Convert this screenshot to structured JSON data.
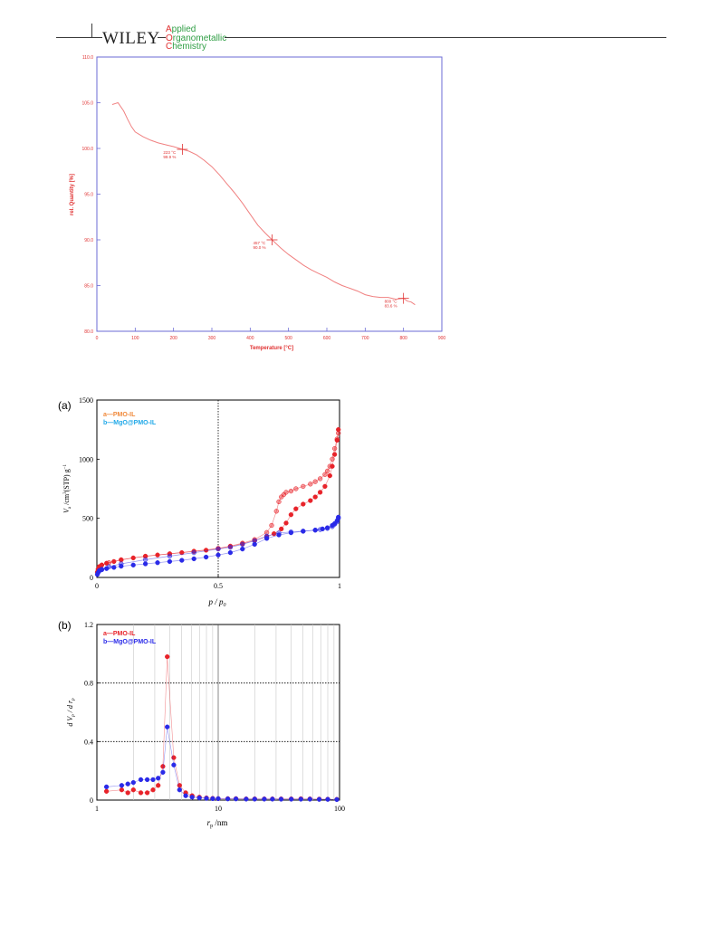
{
  "header": {
    "publisher": "WILEY",
    "journal_lines": [
      {
        "cap": "A",
        "rest": "pplied"
      },
      {
        "cap": "O",
        "rest": "rganometallic"
      },
      {
        "cap": "C",
        "rest": "hemistry"
      }
    ]
  },
  "colors": {
    "tga_axis": "#e03131",
    "tga_curve": "#f08080",
    "tga_frame": "#6b6bd6",
    "series_a": "#e8232a",
    "series_b": "#2a2ae8",
    "legend_a_fig_a": "#f08a3c",
    "legend_b_fig_a": "#1fa8e8"
  },
  "chart_data": [
    {
      "type": "line",
      "xlabel": "Temperature [°C]",
      "ylabel": "rel. Quantity [%]",
      "xlim": [
        0,
        900
      ],
      "ylim": [
        80.0,
        110.0
      ],
      "xticks": [
        "0",
        "100",
        "200",
        "300",
        "400",
        "500",
        "600",
        "700",
        "800",
        "900"
      ],
      "yticks": [
        "80.0",
        "85.0",
        "90.0",
        "95.0",
        "100.0",
        "105.0",
        "110.0"
      ],
      "grid": false,
      "x": [
        40,
        55,
        70,
        80,
        90,
        100,
        120,
        140,
        160,
        180,
        200,
        223,
        240,
        260,
        280,
        300,
        320,
        340,
        360,
        380,
        400,
        420,
        440,
        457,
        480,
        500,
        520,
        540,
        560,
        580,
        600,
        620,
        640,
        660,
        680,
        700,
        720,
        740,
        760,
        780,
        800,
        810,
        820,
        830
      ],
      "y": [
        104.8,
        105.0,
        104.1,
        103.2,
        102.4,
        101.8,
        101.3,
        100.9,
        100.6,
        100.4,
        100.2,
        99.9,
        99.7,
        99.3,
        98.7,
        98.0,
        97.1,
        96.1,
        95.1,
        94.0,
        92.8,
        91.6,
        90.7,
        90.0,
        89.1,
        88.4,
        87.8,
        87.2,
        86.7,
        86.3,
        85.9,
        85.4,
        85.0,
        84.7,
        84.4,
        84.0,
        83.8,
        83.7,
        83.7,
        83.5,
        83.6,
        83.3,
        83.2,
        82.9
      ],
      "annotations": [
        {
          "x": 223,
          "y": 99.9,
          "temp": "223 °C",
          "pct": "99.9 %"
        },
        {
          "x": 457,
          "y": 90.0,
          "temp": "457 °C",
          "pct": "90.0 %"
        },
        {
          "x": 800,
          "y": 83.6,
          "temp": "800 °C",
          "pct": "83.6 %"
        }
      ]
    },
    {
      "type": "scatter",
      "panel": "(a)",
      "xlabel": "p / p0",
      "ylabel": "Va /cm3(STP) g−1",
      "xlim": [
        0,
        1
      ],
      "ylim": [
        0,
        1500
      ],
      "xticks": [
        "0",
        "0.5",
        "1"
      ],
      "yticks": [
        "0",
        "500",
        "1000",
        "1500"
      ],
      "legend": [
        "a—PMO-IL",
        "b—MgO@PMO-IL"
      ],
      "legend_position": "top-left",
      "reference_line_x": 0.5,
      "series": [
        {
          "name": "a—PMO-IL",
          "branch": "adsorption",
          "x": [
            0.002,
            0.005,
            0.01,
            0.02,
            0.04,
            0.07,
            0.1,
            0.15,
            0.2,
            0.25,
            0.3,
            0.35,
            0.4,
            0.45,
            0.5,
            0.55,
            0.6,
            0.65,
            0.7,
            0.73,
            0.76,
            0.78,
            0.8,
            0.82,
            0.85,
            0.88,
            0.9,
            0.92,
            0.94,
            0.96,
            0.97,
            0.98,
            0.99,
            0.995
          ],
          "y": [
            45,
            70,
            90,
            105,
            120,
            135,
            148,
            165,
            178,
            190,
            200,
            210,
            220,
            230,
            245,
            262,
            285,
            312,
            345,
            370,
            410,
            460,
            530,
            580,
            620,
            650,
            680,
            720,
            770,
            860,
            940,
            1040,
            1160,
            1250
          ]
        },
        {
          "name": "a—PMO-IL",
          "branch": "desorption",
          "x": [
            0.995,
            0.99,
            0.98,
            0.97,
            0.96,
            0.95,
            0.94,
            0.92,
            0.9,
            0.88,
            0.85,
            0.82,
            0.8,
            0.78,
            0.77,
            0.76,
            0.75,
            0.74,
            0.72,
            0.7,
            0.65,
            0.6,
            0.55,
            0.5,
            0.4,
            0.3,
            0.2,
            0.1,
            0.05,
            0.02,
            0.01
          ],
          "y": [
            1220,
            1170,
            1090,
            1000,
            940,
            900,
            870,
            835,
            810,
            790,
            770,
            750,
            730,
            720,
            700,
            680,
            640,
            560,
            440,
            380,
            320,
            290,
            265,
            245,
            222,
            200,
            180,
            150,
            125,
            105,
            92
          ]
        },
        {
          "name": "b—MgO@PMO-IL",
          "branch": "adsorption",
          "x": [
            0.002,
            0.005,
            0.01,
            0.02,
            0.04,
            0.07,
            0.1,
            0.15,
            0.2,
            0.25,
            0.3,
            0.35,
            0.4,
            0.45,
            0.5,
            0.55,
            0.6,
            0.65,
            0.7,
            0.75,
            0.8,
            0.85,
            0.9,
            0.93,
            0.95,
            0.97,
            0.98,
            0.99,
            0.995
          ],
          "y": [
            25,
            40,
            55,
            65,
            75,
            85,
            95,
            105,
            115,
            125,
            135,
            145,
            158,
            172,
            190,
            210,
            240,
            280,
            330,
            360,
            378,
            390,
            400,
            410,
            420,
            440,
            455,
            480,
            510
          ]
        },
        {
          "name": "b—MgO@PMO-IL",
          "branch": "desorption",
          "x": [
            0.995,
            0.99,
            0.98,
            0.97,
            0.95,
            0.92,
            0.9,
            0.85,
            0.8,
            0.75,
            0.7,
            0.65,
            0.6,
            0.55,
            0.5,
            0.4,
            0.3,
            0.2,
            0.1,
            0.05,
            0.02,
            0.01
          ],
          "y": [
            500,
            470,
            450,
            430,
            415,
            405,
            400,
            392,
            385,
            375,
            350,
            310,
            280,
            255,
            240,
            210,
            180,
            150,
            115,
            90,
            70,
            60
          ]
        }
      ]
    },
    {
      "type": "line",
      "panel": "(b)",
      "xlabel": "rp /nm",
      "ylabel": "d Vp / d rp",
      "xscale": "log",
      "xlim": [
        1,
        100
      ],
      "ylim": [
        0,
        1.2
      ],
      "xticks": [
        "1",
        "10",
        "100"
      ],
      "yticks": [
        "0",
        "0.4",
        "0.8",
        "1.2"
      ],
      "reference_lines_y": [
        0.4,
        0.8
      ],
      "legend": [
        "a—PMO-IL",
        "b—MgO@PMO-IL"
      ],
      "legend_position": "top-left",
      "series": [
        {
          "name": "a—PMO-IL",
          "x": [
            1.2,
            1.6,
            1.8,
            2.0,
            2.3,
            2.6,
            2.9,
            3.2,
            3.5,
            3.8,
            4.3,
            4.8,
            5.4,
            6.1,
            7.0,
            8.0,
            9.0,
            10,
            12,
            14,
            17,
            20,
            24,
            28,
            33,
            40,
            48,
            57,
            68,
            80,
            95
          ],
          "y": [
            0.06,
            0.07,
            0.05,
            0.07,
            0.05,
            0.05,
            0.07,
            0.1,
            0.23,
            0.98,
            0.29,
            0.1,
            0.05,
            0.03,
            0.02,
            0.015,
            0.012,
            0.01,
            0.01,
            0.01,
            0.008,
            0.008,
            0.008,
            0.008,
            0.008,
            0.008,
            0.009,
            0.008,
            0.007,
            0.006,
            0.005
          ]
        },
        {
          "name": "b—MgO@PMO-IL",
          "x": [
            1.2,
            1.6,
            1.8,
            2.0,
            2.3,
            2.6,
            2.9,
            3.2,
            3.5,
            3.8,
            4.3,
            4.8,
            5.4,
            6.1,
            7.0,
            8.0,
            9.0,
            10,
            12,
            14,
            17,
            20,
            24,
            28,
            33,
            40,
            48,
            57,
            68,
            80,
            95
          ],
          "y": [
            0.09,
            0.1,
            0.11,
            0.12,
            0.14,
            0.14,
            0.14,
            0.15,
            0.19,
            0.5,
            0.24,
            0.07,
            0.03,
            0.02,
            0.015,
            0.012,
            0.01,
            0.01,
            0.008,
            0.008,
            0.007,
            0.007,
            0.007,
            0.007,
            0.006,
            0.006,
            0.006,
            0.006,
            0.005,
            0.005,
            0.004
          ]
        }
      ]
    }
  ]
}
